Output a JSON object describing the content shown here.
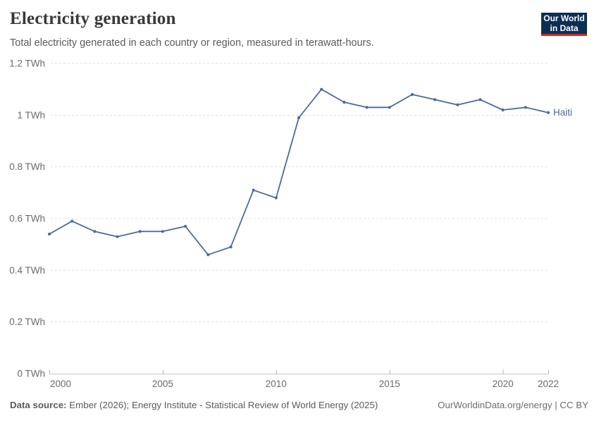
{
  "header": {
    "title": "Electricity generation",
    "subtitle": "Total electricity generated in each country or region, measured in terawatt-hours.",
    "logo": {
      "line1": "Our World",
      "line2": "in Data"
    }
  },
  "chart_data": {
    "type": "line",
    "title": "Electricity generation",
    "unit": "TWh",
    "grid": true,
    "legend_position": "end-of-line",
    "xlim": [
      2000,
      2022
    ],
    "ylim": [
      0,
      1.2
    ],
    "x": [
      2000,
      2001,
      2002,
      2003,
      2004,
      2005,
      2006,
      2007,
      2008,
      2009,
      2010,
      2011,
      2012,
      2013,
      2014,
      2015,
      2016,
      2017,
      2018,
      2019,
      2020,
      2021,
      2022
    ],
    "series": [
      {
        "name": "Haiti",
        "color": "#4c6a9c",
        "values": [
          0.54,
          0.59,
          0.55,
          0.53,
          0.55,
          0.55,
          0.57,
          0.46,
          0.49,
          0.71,
          0.68,
          0.99,
          1.1,
          1.05,
          1.03,
          1.03,
          1.08,
          1.06,
          1.04,
          1.06,
          1.02,
          1.03,
          1.01
        ]
      }
    ],
    "x_ticks": [
      2000,
      2005,
      2010,
      2015,
      2020,
      2022
    ],
    "y_ticks": [
      {
        "value": 0,
        "label": "0 TWh"
      },
      {
        "value": 0.2,
        "label": "0.2 TWh"
      },
      {
        "value": 0.4,
        "label": "0.4 TWh"
      },
      {
        "value": 0.6,
        "label": "0.6 TWh"
      },
      {
        "value": 0.8,
        "label": "0.8 TWh"
      },
      {
        "value": 1,
        "label": "1 TWh"
      },
      {
        "value": 1.2,
        "label": "1.2 TWh"
      }
    ]
  },
  "footer": {
    "source_label": "Data source:",
    "source_text": "Ember (2026); Energy Institute - Statistical Review of World Energy (2025)",
    "right_text": "OurWorldinData.org/energy | CC BY"
  },
  "colors": {
    "line": "#4c6a9c",
    "gridline": "#e2e2e2",
    "axis_line": "#c8c8c8",
    "tick_mark": "#b5b5b5",
    "logo_bg": "#0d2e53",
    "logo_underline": "#cc2b1c"
  }
}
